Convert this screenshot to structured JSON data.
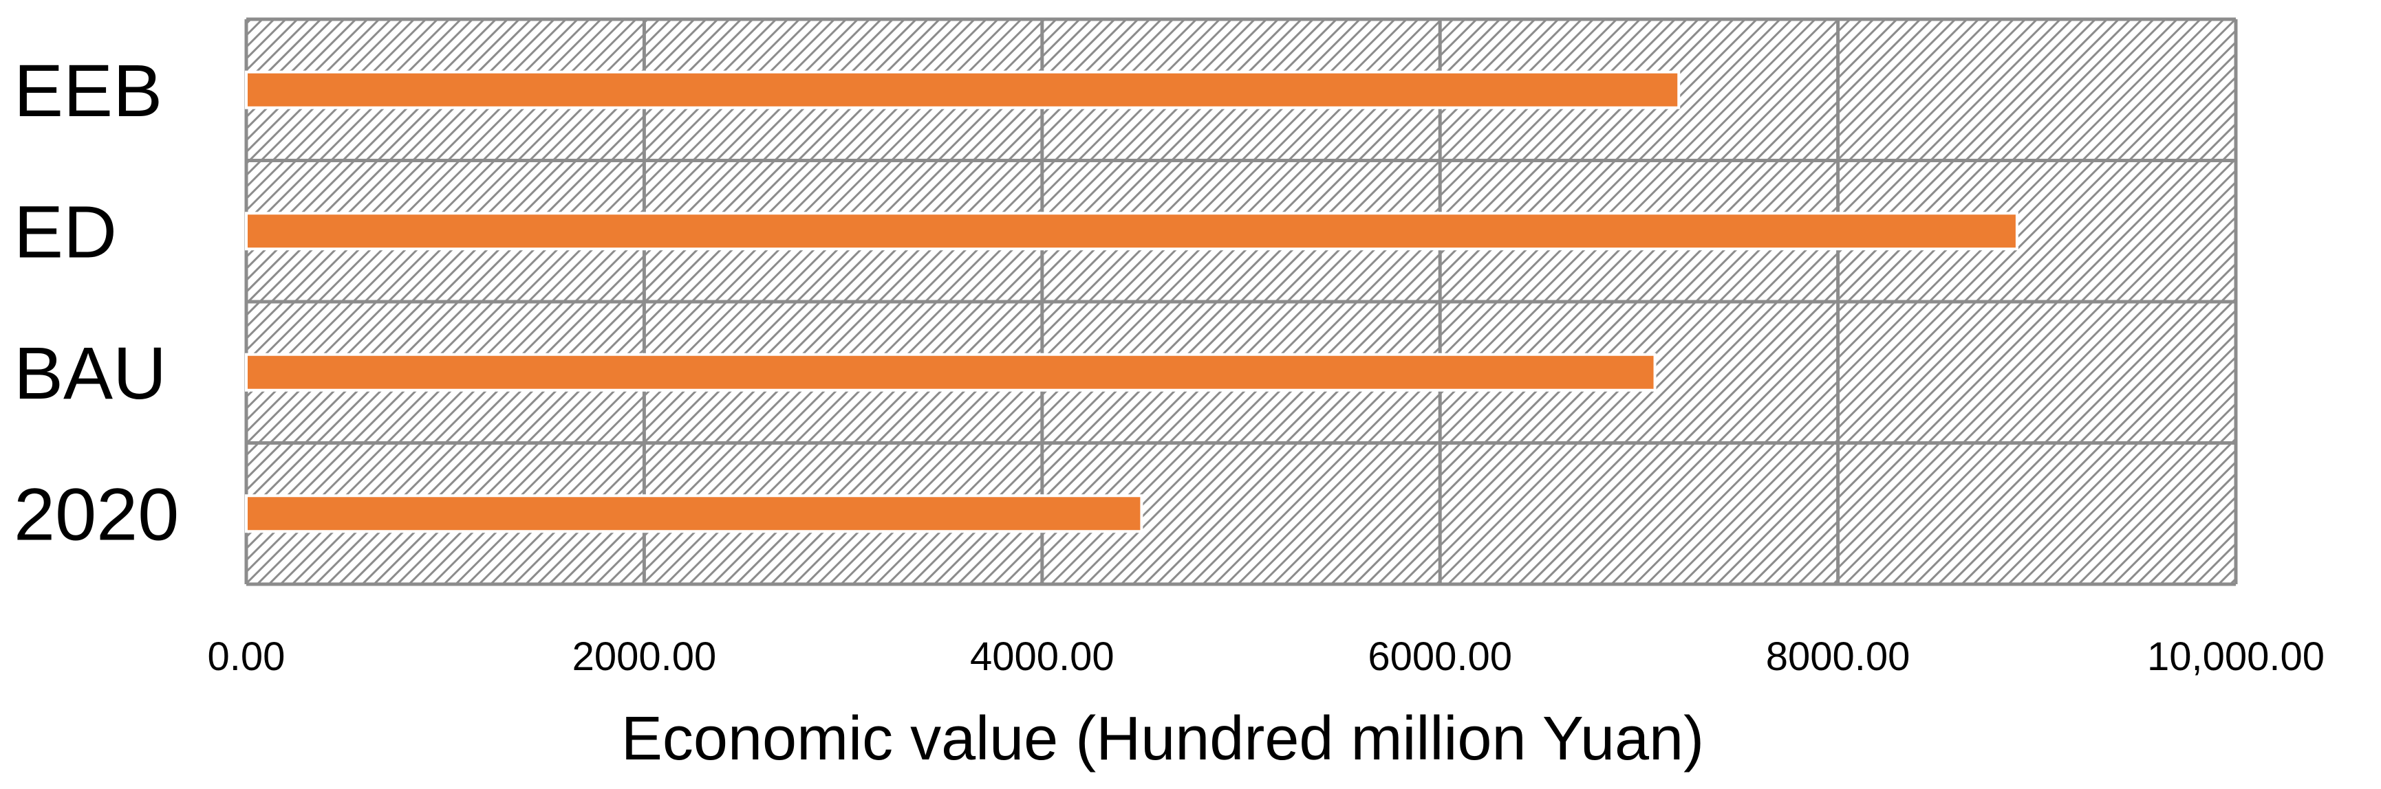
{
  "chart_data": {
    "type": "bar",
    "orientation": "horizontal",
    "categories": [
      "EEB",
      "ED",
      "BAU",
      "2020"
    ],
    "values": [
      7200,
      8900,
      7080,
      4500
    ],
    "xlabel": "Economic value (Hundred million Yuan)",
    "ylabel": "",
    "xlim": [
      0,
      10000
    ],
    "xticks": [
      0,
      2000,
      4000,
      6000,
      8000,
      10000
    ],
    "xtick_labels": [
      "0.00",
      "2000.00",
      "4000.00",
      "6000.00",
      "8000.00",
      "10,000.00"
    ],
    "grid": true,
    "legend": "none",
    "colors": {
      "bar": "#ED7D31",
      "grid": "#8C8C8C",
      "hatch": "#8C8C8C"
    }
  }
}
